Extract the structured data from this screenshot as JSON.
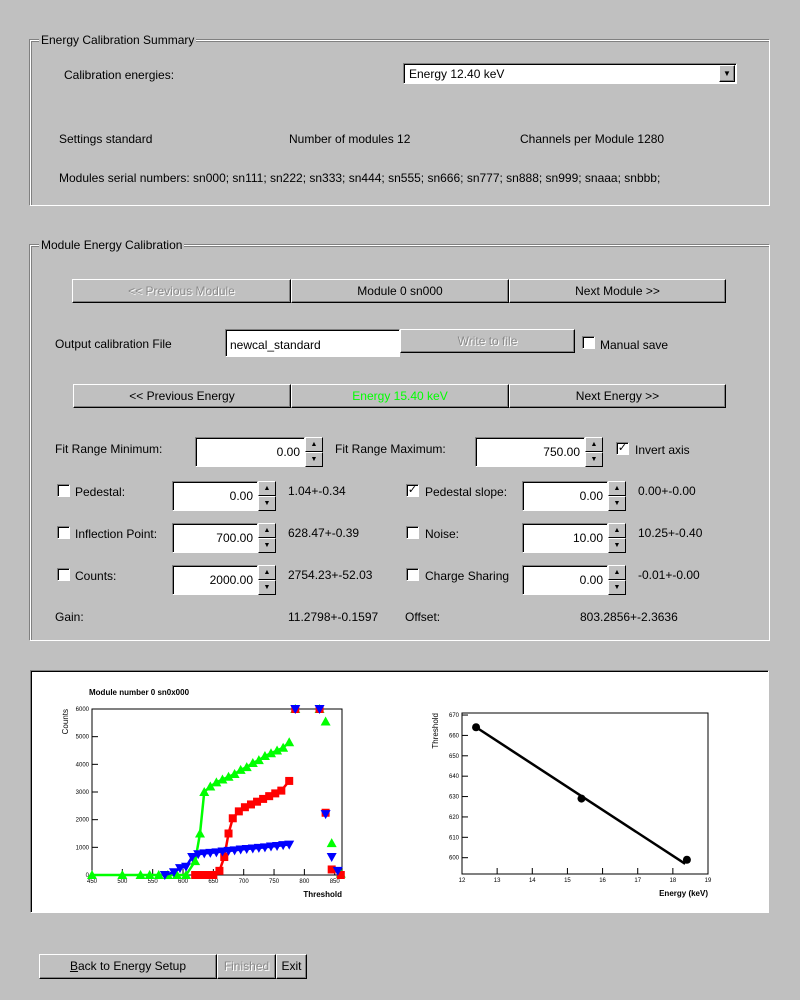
{
  "summary": {
    "title": "Energy Calibration Summary",
    "energies_label": "Calibration energies:",
    "energies_value": "Energy 12.40 keV",
    "settings": "Settings standard",
    "modules": "Number of modules 12",
    "channels": "Channels per Module 1280",
    "serials": "Modules serial numbers: sn000; sn111; sn222; sn333; sn444; sn555; sn666; sn777; sn888; sn999; snaaa; snbbb;"
  },
  "module": {
    "title": "Module Energy Calibration",
    "prev_module": "<< Previous Module",
    "current_module": "Module 0 sn000",
    "next_module": "Next Module >>",
    "output_label": "Output calibration File",
    "output_value": "newcal_standard",
    "write": "Write to file",
    "manual_save": "Manual save",
    "manual_save_checked": false,
    "prev_energy": "<< Previous Energy",
    "current_energy": "Energy 15.40 keV",
    "current_energy_color": "#00ff00",
    "next_energy": "Next Energy >>",
    "fit_min_label": "Fit Range Minimum:",
    "fit_min": "0.00",
    "fit_max_label": "Fit Range Maximum:",
    "fit_max": "750.00",
    "invert_axis": "Invert axis",
    "invert_checked": true,
    "params": [
      {
        "label": "Pedestal:",
        "value": "0.00",
        "result": "1.04+-0.34",
        "checked": false
      },
      {
        "label": "Pedestal slope:",
        "value": "0.00",
        "result": "0.00+-0.00",
        "checked": true
      },
      {
        "label": "Inflection Point:",
        "value": "700.00",
        "result": "628.47+-0.39",
        "checked": false
      },
      {
        "label": "Noise:",
        "value": "10.00",
        "result": "10.25+-0.40",
        "checked": false
      },
      {
        "label": "Counts:",
        "value": "2000.00",
        "result": "2754.23+-52.03",
        "checked": false
      },
      {
        "label": "Charge Sharing",
        "value": "0.00",
        "result": "-0.01+-0.00",
        "checked": false
      }
    ],
    "gain_label": "Gain:",
    "gain": "11.2798+-0.1597",
    "offset_label": "Offset:",
    "offset": "803.2856+-2.3636"
  },
  "buttons": {
    "back": "Back to Energy Setup",
    "finished": "Finished",
    "exit": "Exit"
  },
  "chart_data": [
    {
      "type": "scatter",
      "title": "Module number 0 sn0x000",
      "xlabel": "Threshold",
      "ylabel": "Counts",
      "xlim": [
        450,
        862
      ],
      "ylim": [
        0,
        6000
      ],
      "xticks": [
        450,
        500,
        550,
        600,
        650,
        700,
        750,
        800,
        850
      ],
      "yticks": [
        0,
        1000,
        2000,
        3000,
        4000,
        5000,
        6000
      ],
      "series": [
        {
          "color": "#00ff00",
          "marker": "triangle-up",
          "x": [
            450,
            500,
            530,
            545,
            560,
            575,
            590,
            605,
            620,
            628,
            635,
            645,
            655,
            665,
            675,
            685,
            695,
            705,
            715,
            725,
            735,
            745,
            755,
            765,
            775,
            785,
            825,
            835,
            845,
            860
          ],
          "y": [
            0,
            0,
            0,
            0,
            0,
            0,
            0,
            0,
            500,
            1500,
            3000,
            3200,
            3350,
            3450,
            3550,
            3650,
            3800,
            3900,
            4050,
            4150,
            4300,
            4400,
            4500,
            4600,
            4800,
            6000,
            6000,
            5550,
            1150,
            50
          ]
        },
        {
          "color": "#ff0000",
          "marker": "square",
          "x": [
            620,
            630,
            640,
            650,
            660,
            668,
            675,
            682,
            692,
            702,
            712,
            722,
            732,
            742,
            752,
            762,
            775,
            785,
            825,
            835,
            845,
            860
          ],
          "y": [
            0,
            0,
            0,
            0,
            150,
            650,
            1500,
            2050,
            2300,
            2450,
            2550,
            2650,
            2750,
            2850,
            2950,
            3050,
            3400,
            6000,
            6000,
            2250,
            200,
            0
          ],
          "fit": true
        },
        {
          "color": "#0000ff",
          "marker": "triangle-down",
          "x": [
            570,
            585,
            595,
            605,
            615,
            625,
            635,
            645,
            655,
            665,
            675,
            685,
            695,
            705,
            715,
            725,
            735,
            745,
            755,
            765,
            775,
            785,
            825,
            835,
            845,
            855
          ],
          "y": [
            0,
            100,
            250,
            300,
            650,
            750,
            780,
            800,
            820,
            850,
            870,
            890,
            920,
            940,
            960,
            980,
            1000,
            1030,
            1050,
            1080,
            1100,
            6000,
            6000,
            2200,
            650,
            150
          ]
        }
      ]
    },
    {
      "type": "scatter",
      "xlabel": "Energy (keV)",
      "ylabel": "Threshold",
      "xlim": [
        12,
        19
      ],
      "ylim": [
        592,
        671
      ],
      "xticks": [
        12,
        13,
        14,
        15,
        16,
        17,
        18,
        19
      ],
      "yticks": [
        600,
        610,
        620,
        630,
        640,
        650,
        660,
        670
      ],
      "points": {
        "x": [
          12.4,
          15.4,
          18.4
        ],
        "y": [
          664,
          629,
          599
        ]
      },
      "fit_line": {
        "x": [
          12.4,
          18.35
        ],
        "y": [
          664,
          597
        ]
      }
    }
  ]
}
